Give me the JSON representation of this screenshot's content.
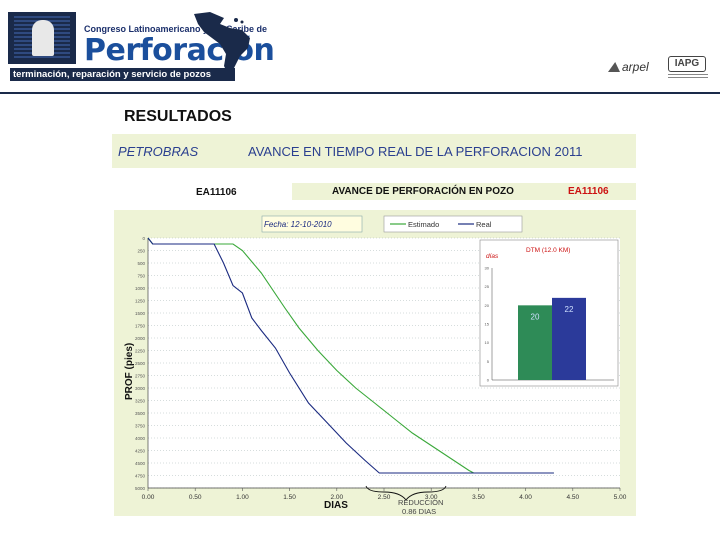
{
  "header": {
    "subtitle": "Congreso Latinoamericano y del Caribe de",
    "title": "Perforación",
    "tagline": "terminación, reparación y servicio de pozos",
    "sponsor_arpel": "arpel",
    "sponsor_iapg": "IAPG"
  },
  "section_title": "RESULTADOS",
  "banner": {
    "company": "PETROBRAS",
    "title": "AVANCE EN  TIEMPO REAL DE LA PERFORACION 2011"
  },
  "well": {
    "label": "EA11106",
    "bar_title": "AVANCE DE PERFORACIÓN  EN POZO",
    "bar_well": "EA11106"
  },
  "colors": {
    "estimado": "#3aa83a",
    "real": "#1a2a80",
    "bar_estimado": "#2e8b57",
    "bar_real": "#2b3a9a",
    "header_navy": "#1a2a4a",
    "banner_bg": "#eef3d6"
  },
  "chart_data": [
    {
      "type": "line",
      "date_label": "Fecha: 12-10-2010",
      "xlabel": "DIAS",
      "ylabel": "PROF (pies)",
      "x_ticks": [
        "0.00",
        "0.50",
        "1.00",
        "1.50",
        "2.00",
        "2.50",
        "3.00",
        "3.50",
        "4.00",
        "4.50",
        "5.00"
      ],
      "y_ticks": [
        "0",
        "250",
        "500",
        "750",
        "1000",
        "1250",
        "1500",
        "1750",
        "2000",
        "2250",
        "2500",
        "2750",
        "3000",
        "3250",
        "3500",
        "3750",
        "4000",
        "4250",
        "4500",
        "4750",
        "5000"
      ],
      "xlim": [
        0,
        5
      ],
      "ylim": [
        0,
        5000
      ],
      "legend": "top",
      "annotation": {
        "text1": "REDUCCIÓN",
        "text2": "0.86 DIAS"
      },
      "series": [
        {
          "name": "Estimado",
          "x": [
            0,
            0.05,
            0.9,
            1.0,
            1.2,
            1.45,
            1.6,
            1.8,
            2.0,
            2.2,
            2.4,
            2.6,
            2.8,
            3.0,
            3.2,
            3.4,
            3.45,
            4.3
          ],
          "y": [
            0,
            120,
            120,
            250,
            700,
            1400,
            1800,
            2250,
            2650,
            3000,
            3300,
            3600,
            3900,
            4150,
            4400,
            4650,
            4700,
            4700
          ]
        },
        {
          "name": "Real",
          "x": [
            0,
            0.05,
            0.7,
            0.8,
            0.9,
            1.0,
            1.1,
            1.2,
            1.35,
            1.5,
            1.7,
            1.9,
            2.1,
            2.3,
            2.45,
            2.6,
            4.3
          ],
          "y": [
            0,
            120,
            120,
            500,
            950,
            1100,
            1600,
            1850,
            2200,
            2700,
            3300,
            3700,
            4100,
            4450,
            4700,
            4700,
            4700
          ]
        }
      ]
    },
    {
      "type": "bar",
      "title": "DTM (12.0 KM)",
      "unit": "días",
      "y_ticks": [
        "0",
        "5",
        "10",
        "15",
        "20",
        "25",
        "30"
      ],
      "ylim": [
        0,
        30
      ],
      "categories": [
        "",
        ""
      ],
      "values": [
        20,
        22
      ],
      "labels": [
        "20",
        "22"
      ]
    }
  ]
}
